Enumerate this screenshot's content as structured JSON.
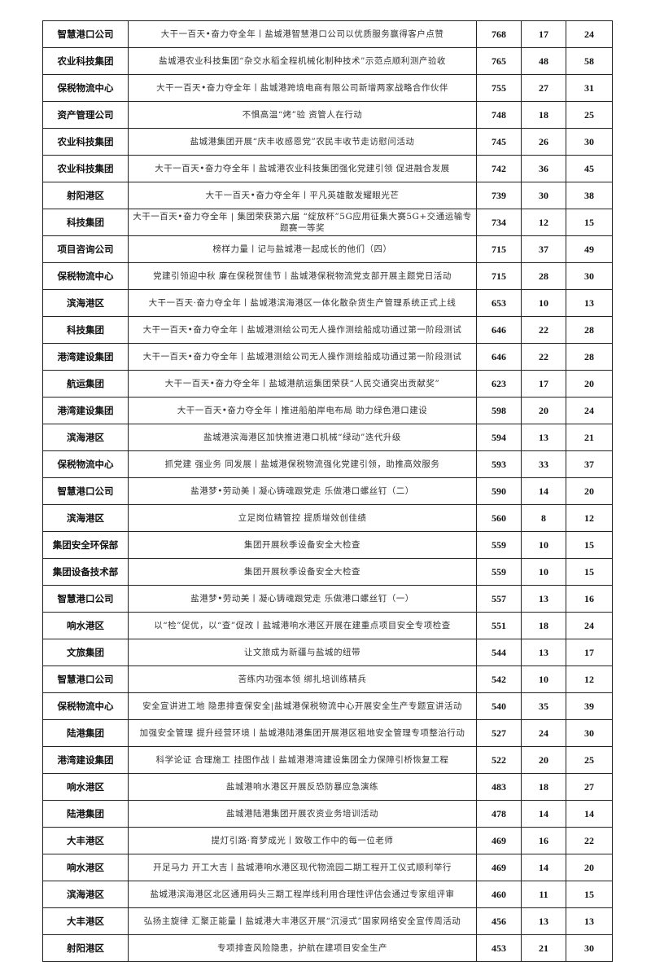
{
  "rows": [
    {
      "org": "智慧港口公司",
      "title": "大干一百天•奋力夺全年丨盐城港智慧港口公司以优质服务赢得客户点赞",
      "v1": "768",
      "v2": "17",
      "v3": "24"
    },
    {
      "org": "农业科技集团",
      "title": "盐城港农业科技集团“杂交水稻全程机械化制种技术”示范点顺利测产验收",
      "v1": "765",
      "v2": "48",
      "v3": "58"
    },
    {
      "org": "保税物流中心",
      "title": "大干一百天•奋力夺全年丨盐城港跨境电商有限公司新增两家战略合作伙伴",
      "v1": "755",
      "v2": "27",
      "v3": "31"
    },
    {
      "org": "资产管理公司",
      "title": "不惧高温“烤”验 资管人在行动",
      "v1": "748",
      "v2": "18",
      "v3": "25"
    },
    {
      "org": "农业科技集团",
      "title": "盐城港集团开展“庆丰收感恩党”农民丰收节走访慰问活动",
      "v1": "745",
      "v2": "26",
      "v3": "30"
    },
    {
      "org": "农业科技集团",
      "title": "大干一百天•奋力夺全年丨盐城港农业科技集团强化党建引领 促进融合发展",
      "v1": "742",
      "v2": "36",
      "v3": "45"
    },
    {
      "org": "射阳港区",
      "title": "大干一百天•奋力夺全年丨平凡英雄散发耀眼光芒",
      "v1": "739",
      "v2": "30",
      "v3": "38"
    },
    {
      "org": "科技集团",
      "title": "大干一百天•奋力夺全年 | 集团荣获第六届 “绽放杯”5G应用征集大赛5G+交通运输专题赛一等奖",
      "v1": "734",
      "v2": "12",
      "v3": "15"
    },
    {
      "org": "项目咨询公司",
      "title": "榜样力量丨记与盐城港一起成长的他们（四）",
      "v1": "715",
      "v2": "37",
      "v3": "49"
    },
    {
      "org": "保税物流中心",
      "title": "党建引领迎中秋 廉在保税贺佳节丨盐城港保税物流党支部开展主题党日活动",
      "v1": "715",
      "v2": "28",
      "v3": "30"
    },
    {
      "org": "滨海港区",
      "title": "大干一百天·奋力夺全年丨盐城港滨海港区一体化散杂货生产管理系统正式上线",
      "v1": "653",
      "v2": "10",
      "v3": "13"
    },
    {
      "org": "科技集团",
      "title": "大干一百天•奋力夺全年丨盐城港测绘公司无人操作测绘船成功通过第一阶段测试",
      "v1": "646",
      "v2": "22",
      "v3": "28"
    },
    {
      "org": "港湾建设集团",
      "title": "大干一百天•奋力夺全年丨盐城港测绘公司无人操作测绘船成功通过第一阶段测试",
      "v1": "646",
      "v2": "22",
      "v3": "28"
    },
    {
      "org": "航运集团",
      "title": "大干一百天•奋力夺全年丨盐城港航运集团荣获“人民交通突出贡献奖”",
      "v1": "623",
      "v2": "17",
      "v3": "20"
    },
    {
      "org": "港湾建设集团",
      "title": "大干一百天•奋力夺全年丨推进船舶岸电布局 助力绿色港口建设",
      "v1": "598",
      "v2": "20",
      "v3": "24"
    },
    {
      "org": "滨海港区",
      "title": "盐城港滨海港区加快推进港口机械“绿动”迭代升级",
      "v1": "594",
      "v2": "13",
      "v3": "21"
    },
    {
      "org": "保税物流中心",
      "title": "抓党建 强业务 同发展丨盐城港保税物流强化党建引领，助推高效服务",
      "v1": "593",
      "v2": "33",
      "v3": "37"
    },
    {
      "org": "智慧港口公司",
      "title": "盐港梦•劳动美丨凝心铸魂跟党走 乐做港口螺丝钉（二）",
      "v1": "590",
      "v2": "14",
      "v3": "20"
    },
    {
      "org": "滨海港区",
      "title": "立足岗位精管控 提质增效创佳绩",
      "v1": "560",
      "v2": "8",
      "v3": "12"
    },
    {
      "org": "集团安全环保部",
      "title": "集团开展秋季设备安全大检查",
      "v1": "559",
      "v2": "10",
      "v3": "15"
    },
    {
      "org": "集团设备技术部",
      "title": "集团开展秋季设备安全大检查",
      "v1": "559",
      "v2": "10",
      "v3": "15"
    },
    {
      "org": "智慧港口公司",
      "title": "盐港梦•劳动美丨凝心铸魂跟党走 乐做港口螺丝钉（一）",
      "v1": "557",
      "v2": "13",
      "v3": "16"
    },
    {
      "org": "响水港区",
      "title": "以“检”促优，以“查”促改丨盐城港响水港区开展在建重点项目安全专项检查",
      "v1": "551",
      "v2": "18",
      "v3": "24"
    },
    {
      "org": "文旅集团",
      "title": "让文旅成为新疆与盐城的纽带",
      "v1": "544",
      "v2": "13",
      "v3": "17"
    },
    {
      "org": "智慧港口公司",
      "title": "苦练内功强本领 绑扎培训练精兵",
      "v1": "542",
      "v2": "10",
      "v3": "12"
    },
    {
      "org": "保税物流中心",
      "title": "安全宣讲进工地 隐患排查保安全|盐城港保税物流中心开展安全生产专题宣讲活动",
      "v1": "540",
      "v2": "35",
      "v3": "39"
    },
    {
      "org": "陆港集团",
      "title": "加强安全管理 提升经营环境丨盐城港陆港集团开展港区租地安全管理专项整治行动",
      "v1": "527",
      "v2": "24",
      "v3": "30"
    },
    {
      "org": "港湾建设集团",
      "title": "科学论证 合理施工 挂图作战丨盐城港港湾建设集团全力保障引桥恢复工程",
      "v1": "522",
      "v2": "20",
      "v3": "25"
    },
    {
      "org": "响水港区",
      "title": "盐城港响水港区开展反恐防暴应急演练",
      "v1": "483",
      "v2": "18",
      "v3": "27"
    },
    {
      "org": "陆港集团",
      "title": "盐城港陆港集团开展农资业务培训活动",
      "v1": "478",
      "v2": "14",
      "v3": "14"
    },
    {
      "org": "大丰港区",
      "title": "提灯引路·育梦成光丨致敬工作中的每一位老师",
      "v1": "469",
      "v2": "16",
      "v3": "22"
    },
    {
      "org": "响水港区",
      "title": "开足马力 开工大吉丨盐城港响水港区现代物流园二期工程开工仪式顺利举行",
      "v1": "469",
      "v2": "14",
      "v3": "20"
    },
    {
      "org": "滨海港区",
      "title": "盐城港滨海港区北区通用码头三期工程岸线利用合理性评估会通过专家组评审",
      "v1": "460",
      "v2": "11",
      "v3": "15"
    },
    {
      "org": "大丰港区",
      "title": "弘扬主旋律 汇聚正能量丨盐城港大丰港区开展“沉浸式”国家网络安全宣传周活动",
      "v1": "456",
      "v2": "13",
      "v3": "13"
    },
    {
      "org": "射阳港区",
      "title": "专项排查风险隐患，护航在建项目安全生产",
      "v1": "453",
      "v2": "21",
      "v3": "30"
    }
  ]
}
